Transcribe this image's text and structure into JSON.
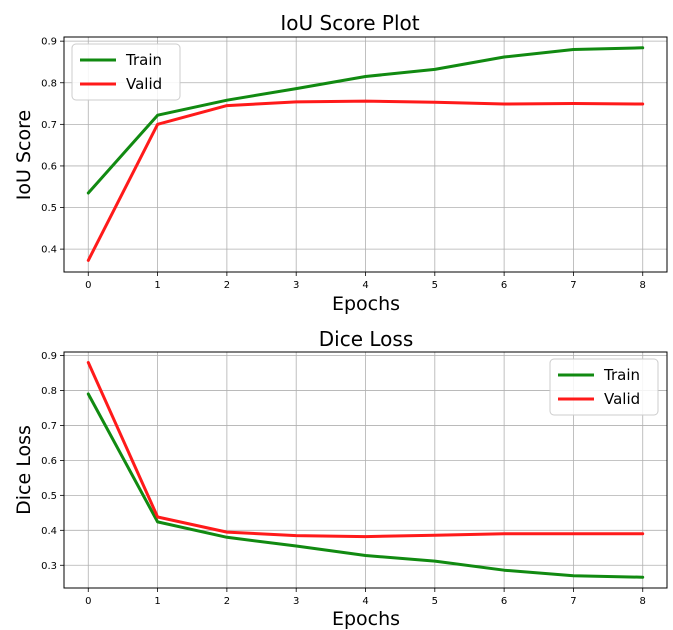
{
  "chart_data": [
    {
      "type": "line",
      "title": "IoU Score Plot",
      "xlabel": "Epochs",
      "ylabel": "IoU Score",
      "x": [
        0,
        1,
        2,
        3,
        4,
        5,
        6,
        7,
        8
      ],
      "xlim": [
        -0.35,
        8.35
      ],
      "ylim": [
        0.345,
        0.91
      ],
      "yticks": [
        0.4,
        0.5,
        0.6,
        0.7,
        0.8,
        0.9
      ],
      "yticklabels": [
        "0.4",
        "0.5",
        "0.6",
        "0.7",
        "0.8",
        "0.9"
      ],
      "xticklabels": [
        "0",
        "1",
        "2",
        "3",
        "4",
        "5",
        "6",
        "7",
        "8"
      ],
      "grid": true,
      "legend": "upper-left",
      "series": [
        {
          "name": "Train",
          "color": "#118a11",
          "values": [
            0.535,
            0.722,
            0.758,
            0.786,
            0.815,
            0.832,
            0.862,
            0.88,
            0.884
          ]
        },
        {
          "name": "Valid",
          "color": "#ff1a1a",
          "values": [
            0.373,
            0.7,
            0.745,
            0.754,
            0.756,
            0.753,
            0.749,
            0.75,
            0.749
          ]
        }
      ]
    },
    {
      "type": "line",
      "title": "Dice Loss",
      "xlabel": "Epochs",
      "ylabel": "Dice Loss",
      "x": [
        0,
        1,
        2,
        3,
        4,
        5,
        6,
        7,
        8
      ],
      "xlim": [
        -0.35,
        8.35
      ],
      "ylim": [
        0.235,
        0.91
      ],
      "yticks": [
        0.3,
        0.4,
        0.5,
        0.6,
        0.7,
        0.8,
        0.9
      ],
      "yticklabels": [
        "0.3",
        "0.4",
        "0.5",
        "0.6",
        "0.7",
        "0.8",
        "0.9"
      ],
      "xticklabels": [
        "0",
        "1",
        "2",
        "3",
        "4",
        "5",
        "6",
        "7",
        "8"
      ],
      "grid": true,
      "legend": "upper-right",
      "series": [
        {
          "name": "Train",
          "color": "#118a11",
          "values": [
            0.79,
            0.424,
            0.38,
            0.355,
            0.328,
            0.312,
            0.286,
            0.27,
            0.266
          ]
        },
        {
          "name": "Valid",
          "color": "#ff1a1a",
          "values": [
            0.88,
            0.438,
            0.395,
            0.385,
            0.382,
            0.386,
            0.39,
            0.39,
            0.39
          ]
        }
      ]
    }
  ]
}
